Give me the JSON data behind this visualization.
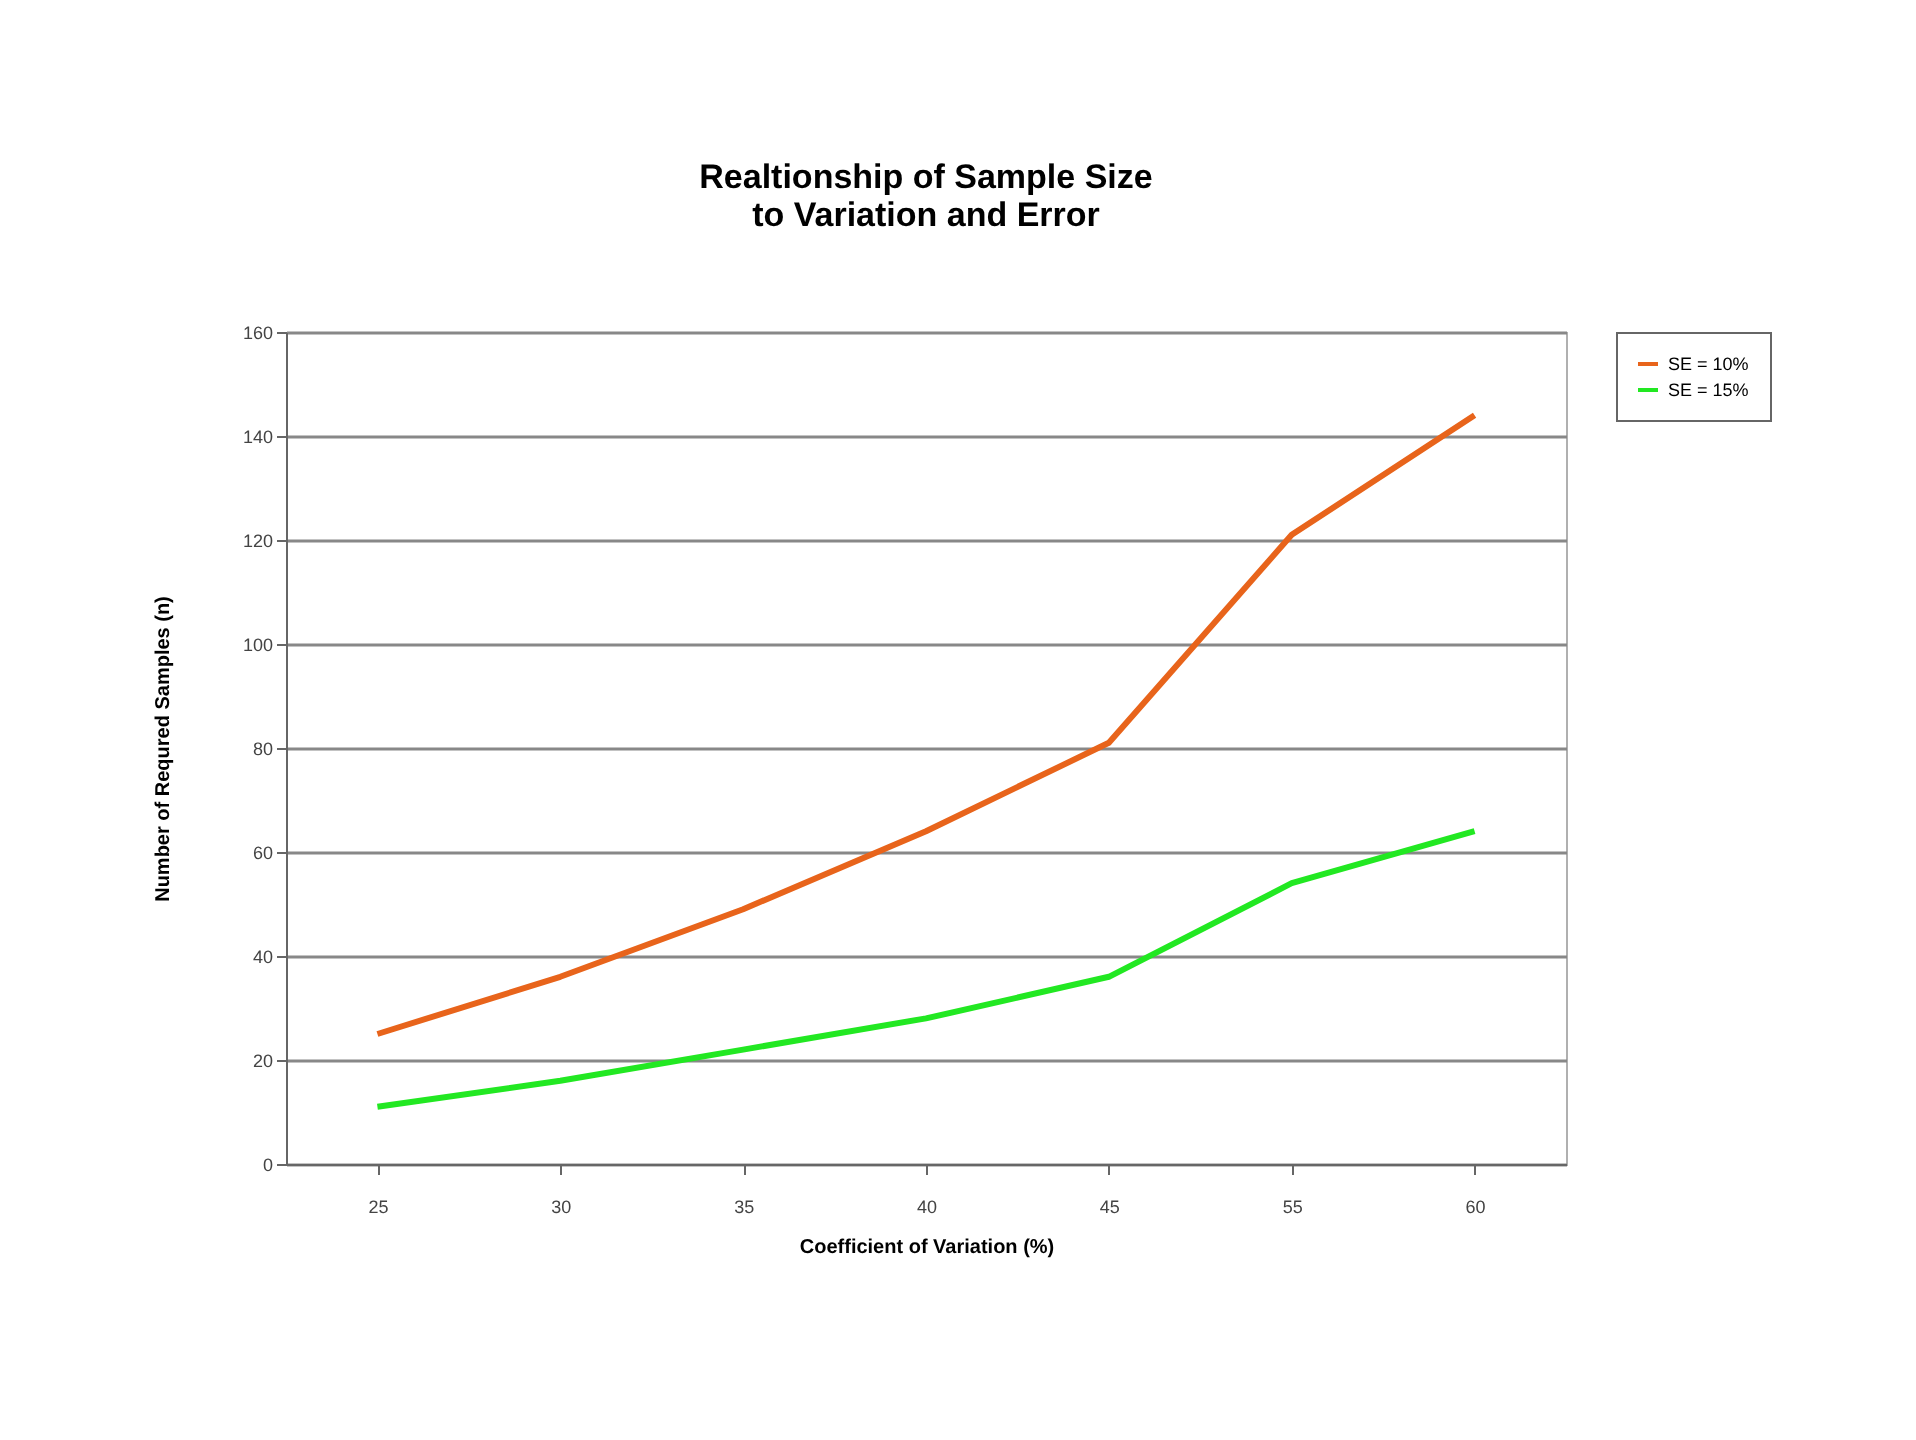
{
  "chart_data": {
    "type": "line",
    "title": "Realtionship of Sample Size\nto Variation and Error",
    "xlabel": "Coefficient of Variation (%)",
    "ylabel": "Number of Requred Samples (n)",
    "categories": [
      "25",
      "30",
      "35",
      "40",
      "45",
      "55",
      "60"
    ],
    "series": [
      {
        "name": "SE = 10%",
        "color": "#e8641b",
        "values": [
          25,
          36,
          49,
          64,
          81,
          121,
          144
        ]
      },
      {
        "name": "SE = 15%",
        "color": "#22e822",
        "values": [
          11,
          16,
          22,
          28,
          36,
          54,
          64
        ]
      }
    ],
    "ylim": [
      0,
      160
    ],
    "yticks": [
      0,
      20,
      40,
      60,
      80,
      100,
      120,
      140,
      160
    ],
    "grid": "y",
    "legend": "right",
    "marker": "none",
    "line_style": "solid"
  }
}
